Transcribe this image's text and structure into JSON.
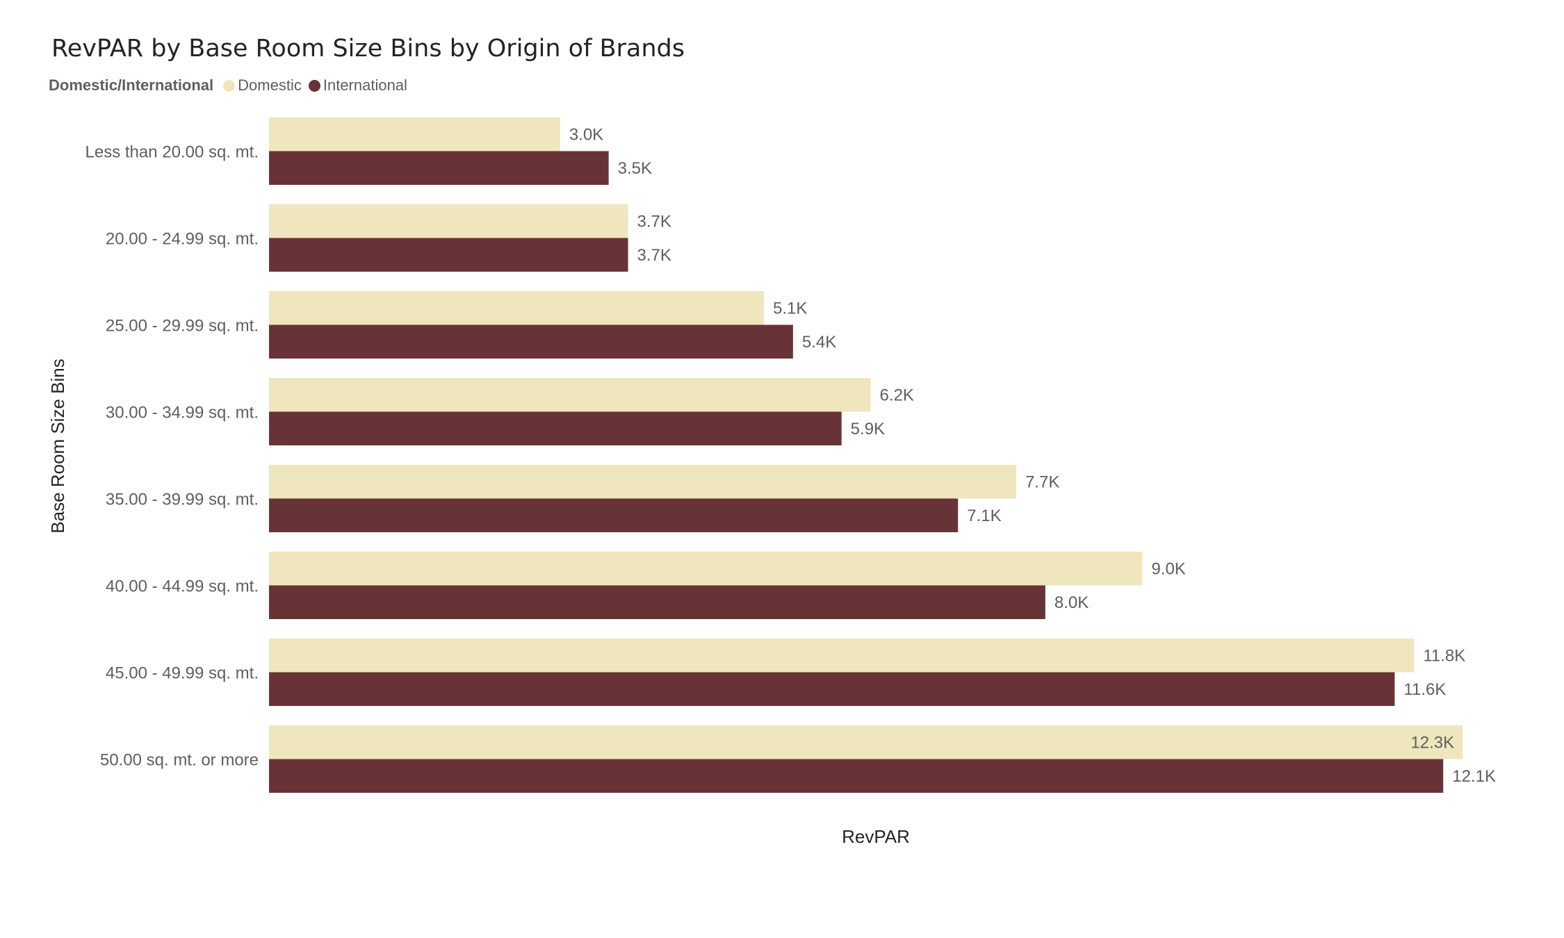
{
  "chart_data": {
    "type": "bar",
    "orientation": "horizontal",
    "title": "RevPAR by Base Room Size Bins by Origin of Brands",
    "xlabel": "RevPAR",
    "ylabel": "Base Room Size Bins",
    "legend_title": "Domestic/International",
    "legend_position": "top-left",
    "grid": false,
    "xlim": [
      0,
      12700
    ],
    "categories": [
      "Less than 20.00 sq. mt.",
      "20.00 - 24.99 sq. mt.",
      "25.00 - 29.99 sq. mt.",
      "30.00 - 34.99 sq. mt.",
      "35.00 - 39.99 sq. mt.",
      "40.00 - 44.99 sq. mt.",
      "45.00 - 49.99 sq. mt.",
      "50.00 sq. mt. or more"
    ],
    "series": [
      {
        "name": "Domestic",
        "color": "#efe6bd",
        "values": [
          3000,
          3700,
          5100,
          6200,
          7700,
          9000,
          11800,
          12300
        ],
        "labels": [
          "3.0K",
          "3.7K",
          "5.1K",
          "6.2K",
          "7.7K",
          "9.0K",
          "11.8K",
          "12.3K"
        ]
      },
      {
        "name": "International",
        "color": "#683336",
        "values": [
          3500,
          3700,
          5400,
          5900,
          7100,
          8000,
          11600,
          12100
        ],
        "labels": [
          "3.5K",
          "3.7K",
          "5.4K",
          "5.9K",
          "7.1K",
          "8.0K",
          "11.6K",
          "12.1K"
        ]
      }
    ]
  }
}
